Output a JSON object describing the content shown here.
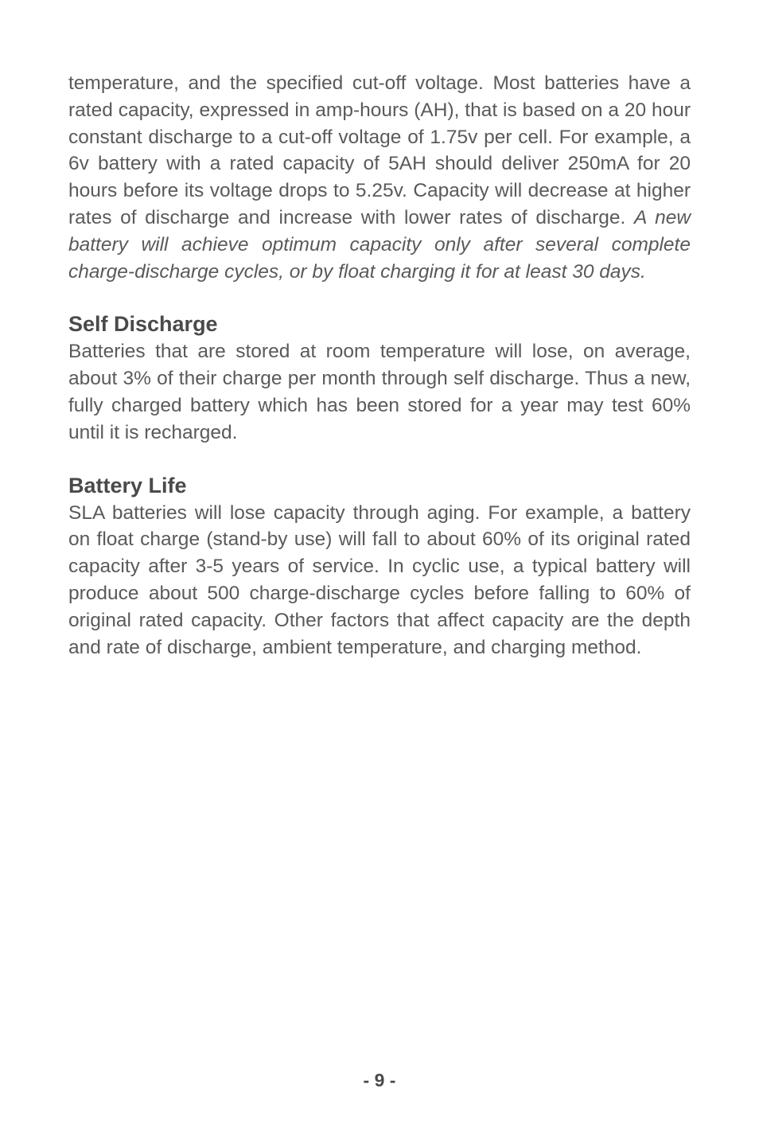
{
  "para1_part1": "temperature, and the specified cut-off voltage.  Most batteries have a rated capacity, expressed in amp-hours (AH), that is based on a 20 hour constant discharge to a cut-off voltage of 1.75v per cell.  For example, a 6v battery with a rated capacity of 5AH should deliver 250mA for 20 hours before its voltage drops to 5.25v.  Capacity will decrease at higher rates of discharge and increase with lower rates of discharge.  ",
  "para1_italic": "A new battery will achieve optimum capacity only after several complete charge-discharge cycles, or by float charging it for at least 30 days.",
  "heading1": "Self Discharge",
  "para2": "Batteries that are stored at room temperature will lose, on average, about 3% of their charge per month through self discharge.  Thus a new, fully charged battery which has been stored for a year may test 60% until it is recharged.",
  "heading2": "Battery Life",
  "para3": "SLA batteries will lose capacity through aging.  For example, a battery on float charge (stand-by use) will fall to about 60% of its original rated capacity after 3-5 years of service.  In cyclic use, a typical battery will produce about 500 charge-discharge cycles before falling to 60% of original rated capacity.  Other factors that affect capacity are the depth and rate of discharge, ambient temperature, and charging method.",
  "page_number": "- 9 -"
}
